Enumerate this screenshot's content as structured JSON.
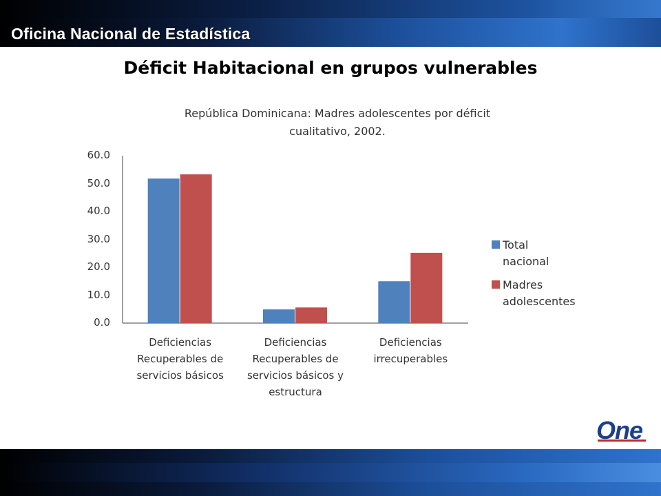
{
  "header": {
    "title": "Oficina Nacional de Estadística"
  },
  "slide": {
    "title": "Déficit Habitacional en grupos vulnerables"
  },
  "logo": {
    "text": "One"
  },
  "colors": {
    "total": "#4f81bd",
    "madres": "#c0504d"
  },
  "chart_data": {
    "type": "bar",
    "title_lines": [
      "República Dominicana: Madres adolescentes por déficit",
      "cualitativo, 2002."
    ],
    "categories": [
      [
        "Deficiencias",
        "Recuperables de",
        "servicios básicos"
      ],
      [
        "Deficiencias",
        "Recuperables de",
        "servicios básicos y",
        "estructura"
      ],
      [
        "Deficiencias",
        "irrecuperables"
      ]
    ],
    "series": [
      {
        "name_lines": [
          "Total",
          "nacional"
        ],
        "values": [
          51.8,
          4.9,
          15.0
        ]
      },
      {
        "name_lines": [
          "Madres",
          "adolescentes"
        ],
        "values": [
          53.3,
          5.6,
          25.2
        ]
      }
    ],
    "ylim": [
      0,
      60
    ],
    "yticks": [
      "0.0",
      "10.0",
      "20.0",
      "30.0",
      "40.0",
      "50.0",
      "60.0"
    ],
    "grid": false,
    "legend_position": "right"
  }
}
